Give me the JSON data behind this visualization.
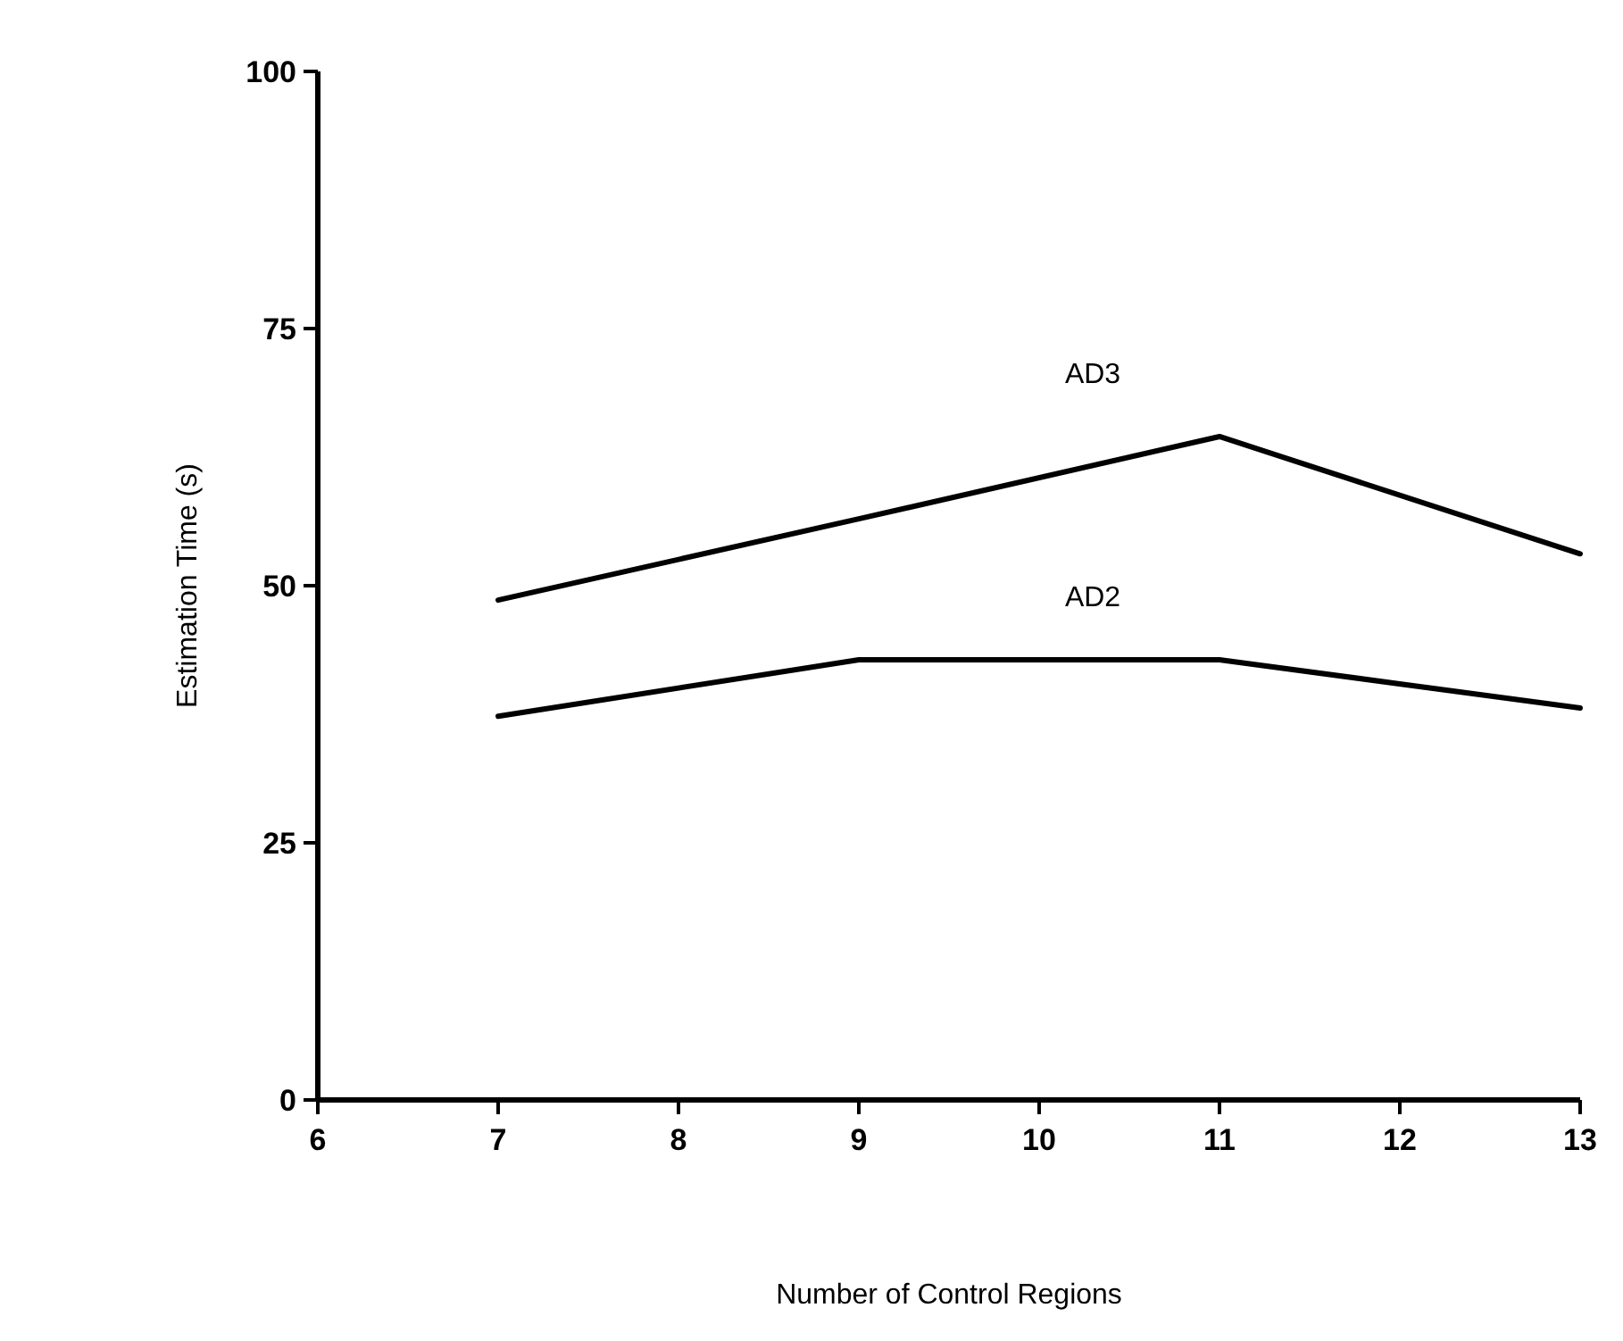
{
  "chart_data": {
    "type": "line",
    "xlabel": "Number of Control Regions",
    "ylabel": "Estimation Time (s)",
    "x": [
      7,
      9,
      11,
      13
    ],
    "series": [
      {
        "name": "AD3",
        "color": "#000000",
        "values": [
          48.6,
          56.5,
          64.5,
          53.1
        ]
      },
      {
        "name": "AD2",
        "color": "#000000",
        "values": [
          37.3,
          42.8,
          42.8,
          38.1
        ]
      }
    ],
    "xlim": [
      6,
      13
    ],
    "xticks": [
      6,
      7,
      8,
      9,
      10,
      11,
      12,
      13
    ],
    "ylim": [
      0,
      100
    ],
    "yticks": [
      0,
      25,
      50,
      75,
      100
    ],
    "grid": false,
    "marker": "none",
    "line_style": "solid"
  }
}
